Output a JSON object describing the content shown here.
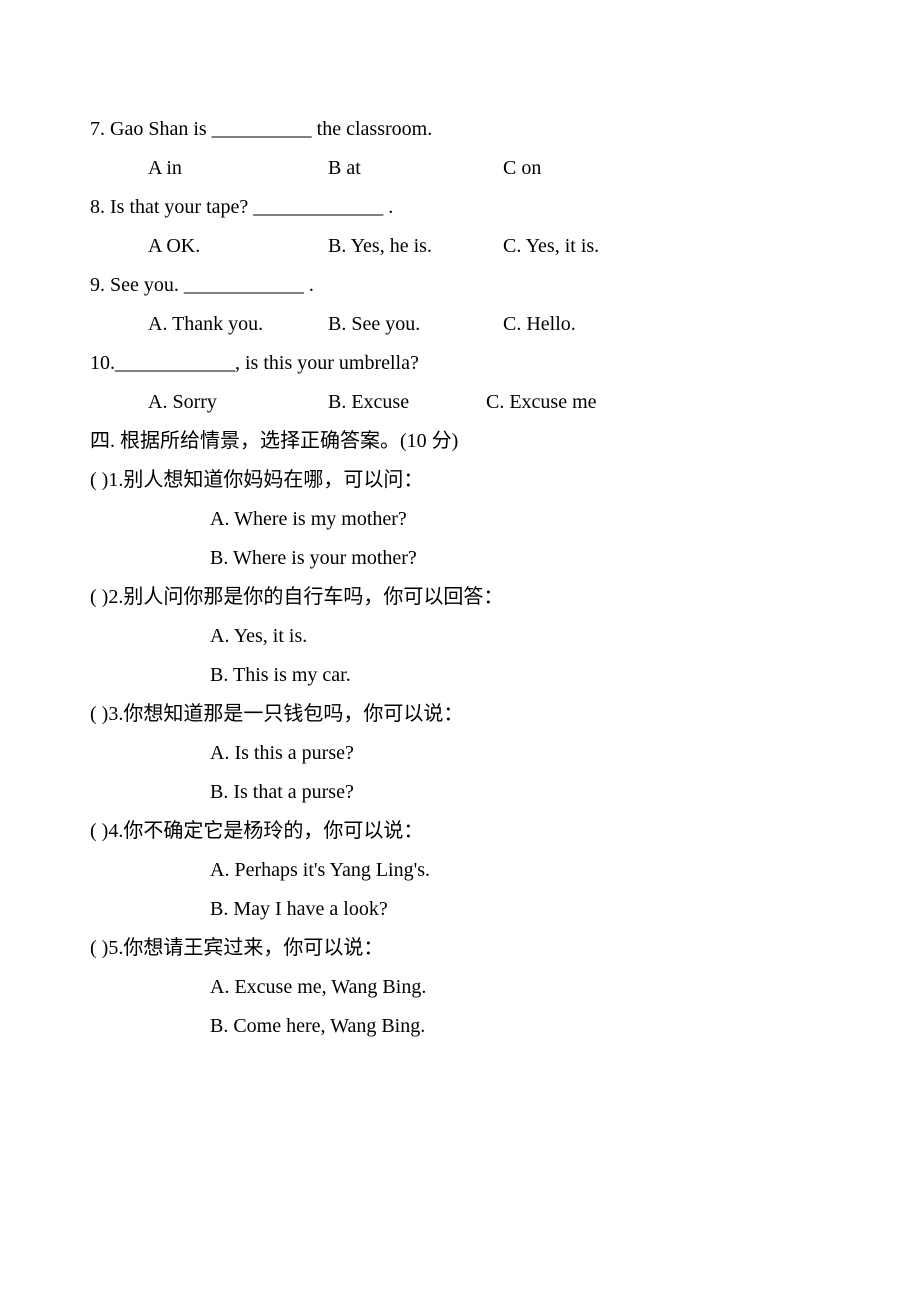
{
  "questions": [
    {
      "stem": "7. Gao Shan is  __________  the classroom.",
      "choices": {
        "a": "A in",
        "b": "B at",
        "c": "C on"
      }
    },
    {
      "stem": "8. Is that your tape?  _____________  .",
      "choices": {
        "a": "A OK.",
        "b": "B. Yes, he is.",
        "c": "C. Yes, it is."
      }
    },
    {
      "stem": "9. See you.  ____________  .",
      "choices": {
        "a": "A. Thank you.",
        "b": "B. See you.",
        "c": "C. Hello."
      }
    },
    {
      "stem": "10.____________, is this your umbrella?",
      "choices": {
        "a": "A. Sorry",
        "b": "B. Excuse",
        "c": "C. Excuse me"
      }
    }
  ],
  "section4": {
    "header": "四.    根据所给情景，选择正确答案。(10 分)",
    "items": [
      {
        "line": "(      )1.别人想知道你妈妈在哪，可以问：",
        "options": [
          "A.   Where is my mother?",
          "B.   Where is your mother?"
        ]
      },
      {
        "line": "(      )2.别人问你那是你的自行车吗，你可以回答：",
        "options": [
          "A. Yes, it is.",
          "B. This is my car."
        ]
      },
      {
        "line": "(      )3.你想知道那是一只钱包吗，你可以说：",
        "options": [
          "A. Is this a purse?",
          "B. Is that a purse?"
        ]
      },
      {
        "line": "(      )4.你不确定它是杨玲的，你可以说：",
        "options": [
          "A. Perhaps it's Yang Ling's.",
          "B. May I have a look?"
        ]
      },
      {
        "line": "(      )5.你想请王宾过来，你可以说：",
        "options": [
          "A. Excuse me, Wang Bing.",
          "B. Come here, Wang Bing."
        ]
      }
    ]
  }
}
